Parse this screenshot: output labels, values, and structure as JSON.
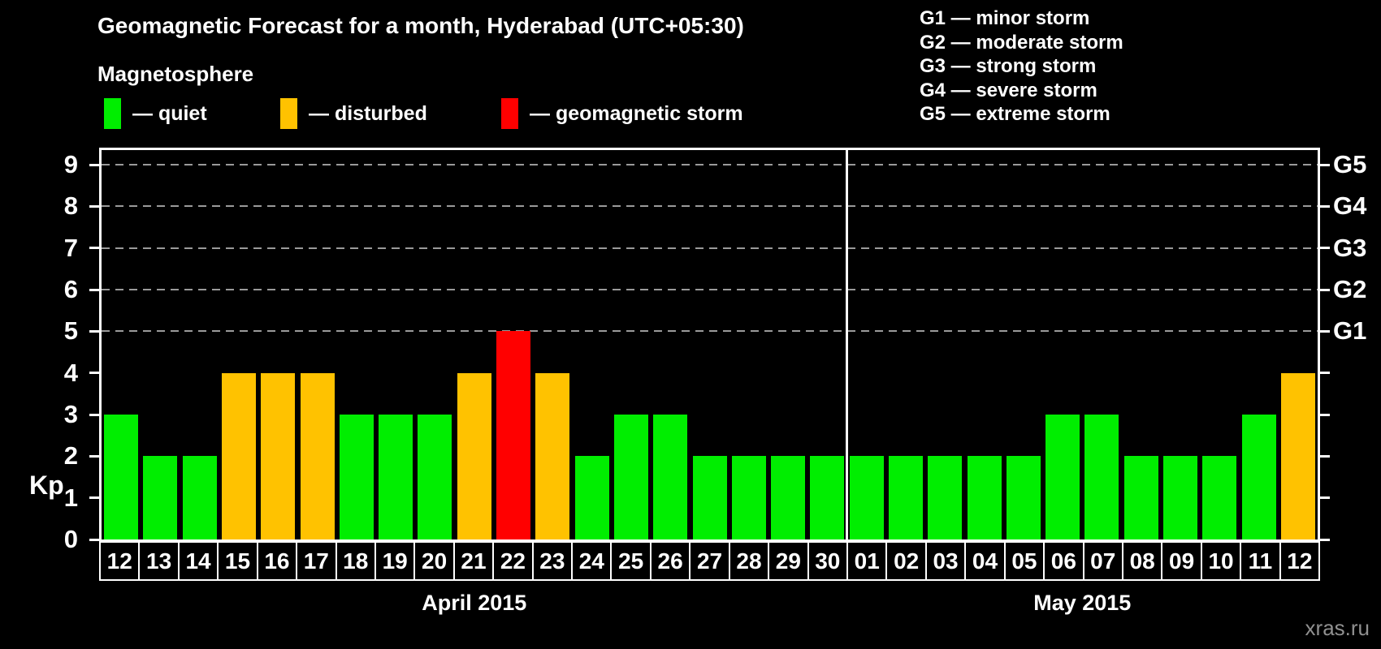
{
  "header": {
    "title": "Geomagnetic Forecast for a month, Hyderabad (UTC+05:30)",
    "subtitle": "Magnetosphere",
    "watermark": "xras.ru"
  },
  "legend": {
    "items": [
      {
        "label": "— quiet",
        "state": "quiet"
      },
      {
        "label": "— disturbed",
        "state": "disturbed"
      },
      {
        "label": "— geomagnetic storm",
        "state": "storm"
      }
    ]
  },
  "g_scale_legend": [
    "G1 — minor storm",
    "G2 — moderate storm",
    "G3 — strong storm",
    "G4 — severe storm",
    "G5 — extreme storm"
  ],
  "colors": {
    "quiet": "#00ee00",
    "disturbed": "#ffc200",
    "storm": "#ff0000",
    "background": "#000000",
    "text": "#ffffff",
    "grid": "#9a9a9a",
    "watermark": "#909090"
  },
  "chart_data": {
    "type": "bar",
    "title": "Geomagnetic Forecast for a month, Hyderabad (UTC+05:30)",
    "ylabel": "Kp",
    "ylim": [
      0,
      9.4
    ],
    "grid": "dashed horizontal at Kp 5-9",
    "kp_ticks": [
      0,
      1,
      2,
      3,
      4,
      5,
      6,
      7,
      8,
      9
    ],
    "gridlines_at": [
      5,
      6,
      7,
      8,
      9
    ],
    "g_labels": [
      {
        "label": "G1",
        "kp": 5
      },
      {
        "label": "G2",
        "kp": 6
      },
      {
        "label": "G3",
        "kp": 7
      },
      {
        "label": "G4",
        "kp": 8
      },
      {
        "label": "G5",
        "kp": 9
      }
    ],
    "months": [
      {
        "label": "April 2015",
        "days": 19
      },
      {
        "label": "May 2015",
        "days": 12
      }
    ],
    "days": [
      {
        "date": "12",
        "month": "April 2015",
        "kp": 3,
        "state": "quiet"
      },
      {
        "date": "13",
        "month": "April 2015",
        "kp": 2,
        "state": "quiet"
      },
      {
        "date": "14",
        "month": "April 2015",
        "kp": 2,
        "state": "quiet"
      },
      {
        "date": "15",
        "month": "April 2015",
        "kp": 4,
        "state": "disturbed"
      },
      {
        "date": "16",
        "month": "April 2015",
        "kp": 4,
        "state": "disturbed"
      },
      {
        "date": "17",
        "month": "April 2015",
        "kp": 4,
        "state": "disturbed"
      },
      {
        "date": "18",
        "month": "April 2015",
        "kp": 3,
        "state": "quiet"
      },
      {
        "date": "19",
        "month": "April 2015",
        "kp": 3,
        "state": "quiet"
      },
      {
        "date": "20",
        "month": "April 2015",
        "kp": 3,
        "state": "quiet"
      },
      {
        "date": "21",
        "month": "April 2015",
        "kp": 4,
        "state": "disturbed"
      },
      {
        "date": "22",
        "month": "April 2015",
        "kp": 5,
        "state": "storm"
      },
      {
        "date": "23",
        "month": "April 2015",
        "kp": 4,
        "state": "disturbed"
      },
      {
        "date": "24",
        "month": "April 2015",
        "kp": 2,
        "state": "quiet"
      },
      {
        "date": "25",
        "month": "April 2015",
        "kp": 3,
        "state": "quiet"
      },
      {
        "date": "26",
        "month": "April 2015",
        "kp": 3,
        "state": "quiet"
      },
      {
        "date": "27",
        "month": "April 2015",
        "kp": 2,
        "state": "quiet"
      },
      {
        "date": "28",
        "month": "April 2015",
        "kp": 2,
        "state": "quiet"
      },
      {
        "date": "29",
        "month": "April 2015",
        "kp": 2,
        "state": "quiet"
      },
      {
        "date": "30",
        "month": "April 2015",
        "kp": 2,
        "state": "quiet"
      },
      {
        "date": "01",
        "month": "May 2015",
        "kp": 2,
        "state": "quiet"
      },
      {
        "date": "02",
        "month": "May 2015",
        "kp": 2,
        "state": "quiet"
      },
      {
        "date": "03",
        "month": "May 2015",
        "kp": 2,
        "state": "quiet"
      },
      {
        "date": "04",
        "month": "May 2015",
        "kp": 2,
        "state": "quiet"
      },
      {
        "date": "05",
        "month": "May 2015",
        "kp": 2,
        "state": "quiet"
      },
      {
        "date": "06",
        "month": "May 2015",
        "kp": 3,
        "state": "quiet"
      },
      {
        "date": "07",
        "month": "May 2015",
        "kp": 3,
        "state": "quiet"
      },
      {
        "date": "08",
        "month": "May 2015",
        "kp": 2,
        "state": "quiet"
      },
      {
        "date": "09",
        "month": "May 2015",
        "kp": 2,
        "state": "quiet"
      },
      {
        "date": "10",
        "month": "May 2015",
        "kp": 2,
        "state": "quiet"
      },
      {
        "date": "11",
        "month": "May 2015",
        "kp": 3,
        "state": "quiet"
      },
      {
        "date": "12",
        "month": "May 2015",
        "kp": 4,
        "state": "disturbed"
      }
    ]
  }
}
